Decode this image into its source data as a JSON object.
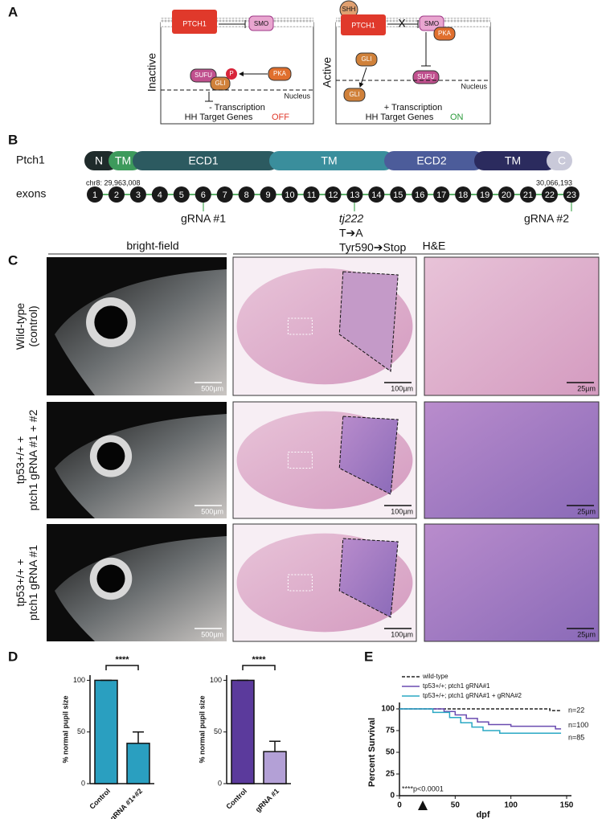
{
  "figure": {
    "panel_labels": [
      "A",
      "B",
      "C",
      "D",
      "E"
    ]
  },
  "panel_a": {
    "inactive": {
      "state": "Inactive",
      "ptch1": "PTCH1",
      "smo": "SMO",
      "sufu": "SUFU",
      "gli": "GLI",
      "p": "P",
      "pka": "PKA",
      "nucleus": "Nucleus",
      "transcription": "- Transcription",
      "target_genes": "HH Target Genes",
      "status": "OFF"
    },
    "active": {
      "state": "Active",
      "shh": "SHH",
      "ptch1": "PTCH1",
      "x": "X",
      "smo": "SMO",
      "pka": "PKA",
      "gli": "GLI",
      "sufu": "SUFU",
      "gli_nucleus": "GLI",
      "nucleus": "Nucleus",
      "transcription": "+ Transcription",
      "target_genes": "HH Target Genes",
      "status": "ON"
    }
  },
  "panel_b": {
    "gene": "Ptch1",
    "domains": [
      {
        "name": "N",
        "color": "#1f2b2b"
      },
      {
        "name": "TM",
        "color": "#3d9a5c"
      },
      {
        "name": "ECD1",
        "color": "#2c5a60"
      },
      {
        "name": "TM",
        "color": "#3a8e9c"
      },
      {
        "name": "ECD2",
        "color": "#4c5c9a"
      },
      {
        "name": "TM",
        "color": "#2b2b5e"
      },
      {
        "name": "C",
        "color": "#c9c9d9"
      }
    ],
    "chr_start": "chr8: 29,963,008",
    "chr_end": "30,066,193",
    "exons_label": "exons",
    "exons": [
      1,
      2,
      3,
      4,
      5,
      6,
      7,
      8,
      9,
      10,
      11,
      12,
      13,
      14,
      15,
      16,
      17,
      18,
      19,
      20,
      21,
      22,
      23
    ],
    "grna1": "gRNA #1",
    "mutation": "tj222",
    "base_change": "T➔A",
    "protein_change": "Tyr590➔Stop",
    "grna2": "gRNA #2"
  },
  "panel_c": {
    "column_headers": [
      "bright-field",
      "H&E"
    ],
    "rows": [
      {
        "label_lines": [
          "Wild-type",
          "(control)"
        ],
        "scale_bars": [
          "500µm",
          "100µm",
          "25µm"
        ]
      },
      {
        "label_lines": [
          "tp53+/+ +",
          "ptch1 gRNA #1 + #2"
        ],
        "scale_bars": [
          "500µm",
          "100µm",
          "25µm"
        ]
      },
      {
        "label_lines": [
          "tp53+/+ +",
          "ptch1 gRNA #1"
        ],
        "scale_bars": [
          "500µm",
          "100µm",
          "25µm"
        ]
      }
    ]
  },
  "chart_data": [
    {
      "type": "bar",
      "y_label": "% normal pupil size",
      "categories": [
        "Control",
        "gRNA #1+#2"
      ],
      "values": [
        100,
        39
      ],
      "errors": [
        0,
        11
      ],
      "colors": [
        "#2a9fc0",
        "#2a9fc0"
      ],
      "ylim": [
        0,
        105
      ],
      "yticks": [
        0,
        50,
        100
      ],
      "annotation": "****"
    },
    {
      "type": "bar",
      "y_label": "% normal pupil size",
      "categories": [
        "Control",
        "gRNA #1"
      ],
      "values": [
        100,
        31
      ],
      "errors": [
        0,
        10
      ],
      "colors": [
        "#5b3a9c",
        "#b3a0d6"
      ],
      "ylim": [
        0,
        105
      ],
      "yticks": [
        0,
        50,
        100
      ],
      "annotation": "****"
    },
    {
      "type": "line",
      "x_label": "dpf",
      "y_label": "Percent Survival",
      "xlim": [
        0,
        150
      ],
      "xticks": [
        0,
        50,
        100,
        150
      ],
      "ylim": [
        0,
        100
      ],
      "yticks": [
        0,
        25,
        50,
        75,
        100
      ],
      "annotation": "****p<0.0001",
      "series": [
        {
          "name": "wild-type",
          "color": "#222222",
          "dashed": true,
          "end_label": "n=22",
          "x": [
            0,
            135,
            135,
            145
          ],
          "values": [
            100,
            100,
            98,
            98
          ]
        },
        {
          "name": "tp53+/+; ptch1 gRNA#1",
          "color": "#6a4bb0",
          "dashed": false,
          "end_label": "n=100",
          "x": [
            0,
            40,
            40,
            50,
            50,
            60,
            60,
            70,
            70,
            80,
            80,
            100,
            100,
            140,
            140,
            145
          ],
          "values": [
            100,
            100,
            97,
            97,
            93,
            93,
            89,
            89,
            85,
            85,
            82,
            82,
            80,
            80,
            77,
            77
          ]
        },
        {
          "name": "tp53+/+; ptch1 gRNA#1 + gRNA#2",
          "color": "#2aa8c4",
          "dashed": false,
          "end_label": "n=85",
          "x": [
            0,
            30,
            30,
            45,
            45,
            55,
            55,
            65,
            65,
            75,
            75,
            90,
            90,
            145
          ],
          "values": [
            100,
            100,
            96,
            96,
            90,
            90,
            84,
            84,
            79,
            79,
            75,
            75,
            72,
            72
          ]
        }
      ]
    }
  ]
}
